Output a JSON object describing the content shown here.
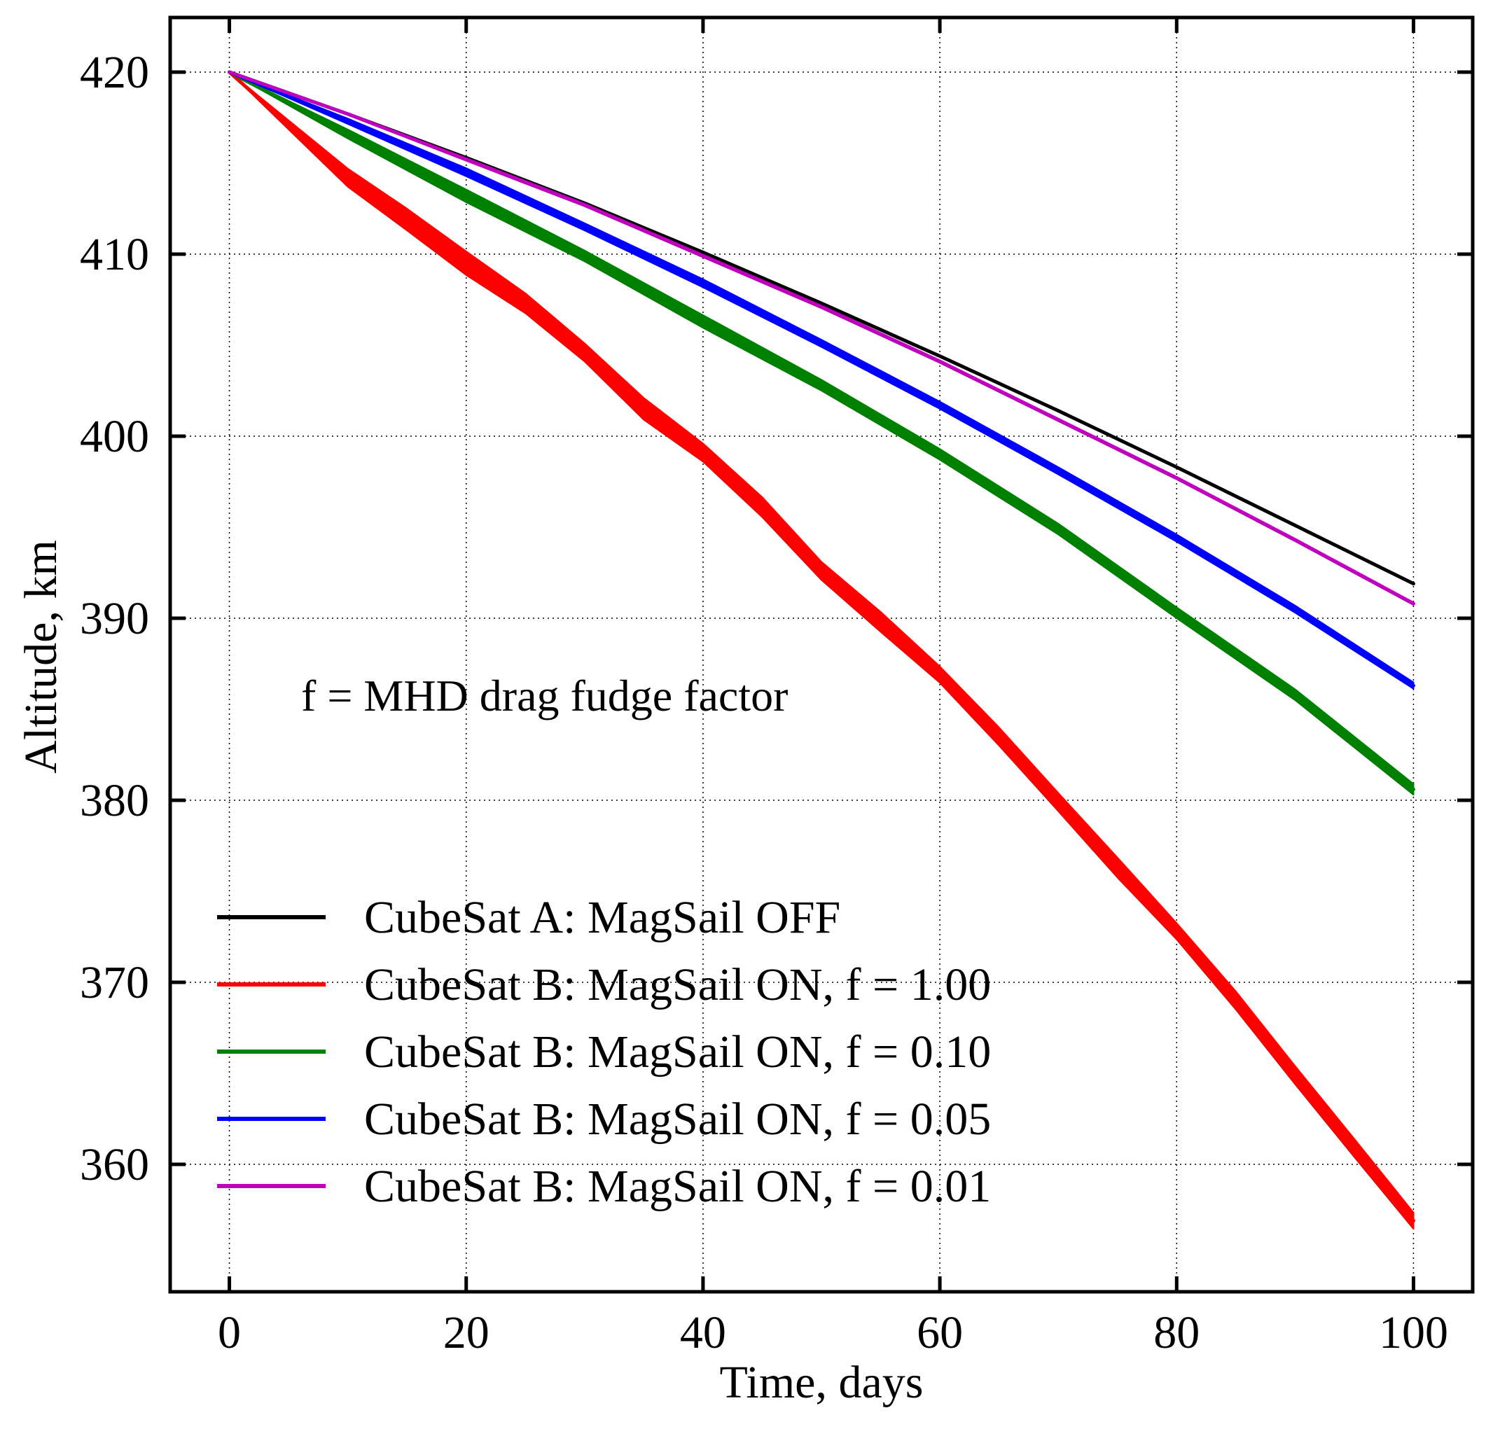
{
  "chart_data": {
    "type": "line",
    "title": "",
    "xlabel": "Time, days",
    "ylabel": "Altitude, km",
    "xlim": [
      -5,
      105
    ],
    "ylim": [
      353,
      423
    ],
    "xticks": [
      0,
      20,
      40,
      60,
      80,
      100
    ],
    "yticks": [
      360,
      370,
      380,
      390,
      400,
      410,
      420
    ],
    "grid": true,
    "legend_position": "lower-left",
    "annotation": "f = MHD drag fudge factor",
    "series": [
      {
        "name": "CubeSat A: MagSail OFF",
        "color": "#000000",
        "x": [
          0,
          10,
          20,
          30,
          40,
          50,
          60,
          70,
          80,
          90,
          100
        ],
        "y": [
          420,
          417.7,
          415.3,
          412.8,
          410.1,
          407.3,
          404.4,
          401.4,
          398.3,
          395.1,
          391.9
        ],
        "band": [
          0,
          0,
          0,
          0,
          0,
          0,
          0,
          0,
          0,
          0,
          0
        ]
      },
      {
        "name": "CubeSat B: MagSail ON, f = 1.00",
        "color": "#ff0000",
        "x": [
          0,
          5,
          10,
          15,
          20,
          25,
          30,
          35,
          40,
          45,
          50,
          55,
          60,
          65,
          70,
          75,
          80,
          85,
          90,
          95,
          100
        ],
        "y": [
          420,
          417.1,
          414.2,
          411.9,
          409.5,
          407.3,
          404.6,
          401.5,
          399.1,
          396.1,
          392.6,
          389.8,
          386.9,
          383.5,
          379.9,
          376.3,
          372.8,
          369.0,
          364.9,
          360.9,
          356.9
        ],
        "band": [
          0,
          0.5,
          1.0,
          1.2,
          1.3,
          1.1,
          1.0,
          1.2,
          1.0,
          1.1,
          1.0,
          1.1,
          0.9,
          1.0,
          1.0,
          1.1,
          0.9,
          1.0,
          1.0,
          1.0,
          0.9
        ]
      },
      {
        "name": "CubeSat B: MagSail ON, f = 0.10",
        "color": "#008000",
        "x": [
          0,
          10,
          20,
          30,
          40,
          50,
          60,
          70,
          80,
          90,
          100
        ],
        "y": [
          420,
          416.6,
          413.2,
          409.9,
          406.3,
          402.8,
          399.0,
          394.9,
          390.3,
          385.8,
          380.6
        ],
        "band": [
          0,
          0.5,
          0.7,
          0.6,
          0.7,
          0.6,
          0.6,
          0.6,
          0.6,
          0.6,
          0.6
        ]
      },
      {
        "name": "CubeSat B: MagSail ON, f = 0.05",
        "color": "#0000ff",
        "x": [
          0,
          10,
          20,
          30,
          40,
          50,
          60,
          70,
          80,
          90,
          100
        ],
        "y": [
          420,
          417.3,
          414.5,
          411.5,
          408.4,
          405.1,
          401.7,
          398.1,
          394.4,
          390.5,
          386.3
        ],
        "band": [
          0,
          0.3,
          0.45,
          0.4,
          0.45,
          0.4,
          0.4,
          0.4,
          0.4,
          0.4,
          0.35
        ]
      },
      {
        "name": "CubeSat B: MagSail ON, f = 0.01",
        "color": "#bf00bf",
        "x": [
          0,
          10,
          20,
          30,
          40,
          50,
          60,
          70,
          80,
          90,
          100
        ],
        "y": [
          420,
          417.7,
          415.2,
          412.7,
          409.9,
          407.1,
          404.1,
          400.9,
          397.7,
          394.3,
          390.8
        ],
        "band": [
          0,
          0.1,
          0.15,
          0.15,
          0.15,
          0.15,
          0.15,
          0.15,
          0.15,
          0.15,
          0.15
        ]
      }
    ]
  }
}
